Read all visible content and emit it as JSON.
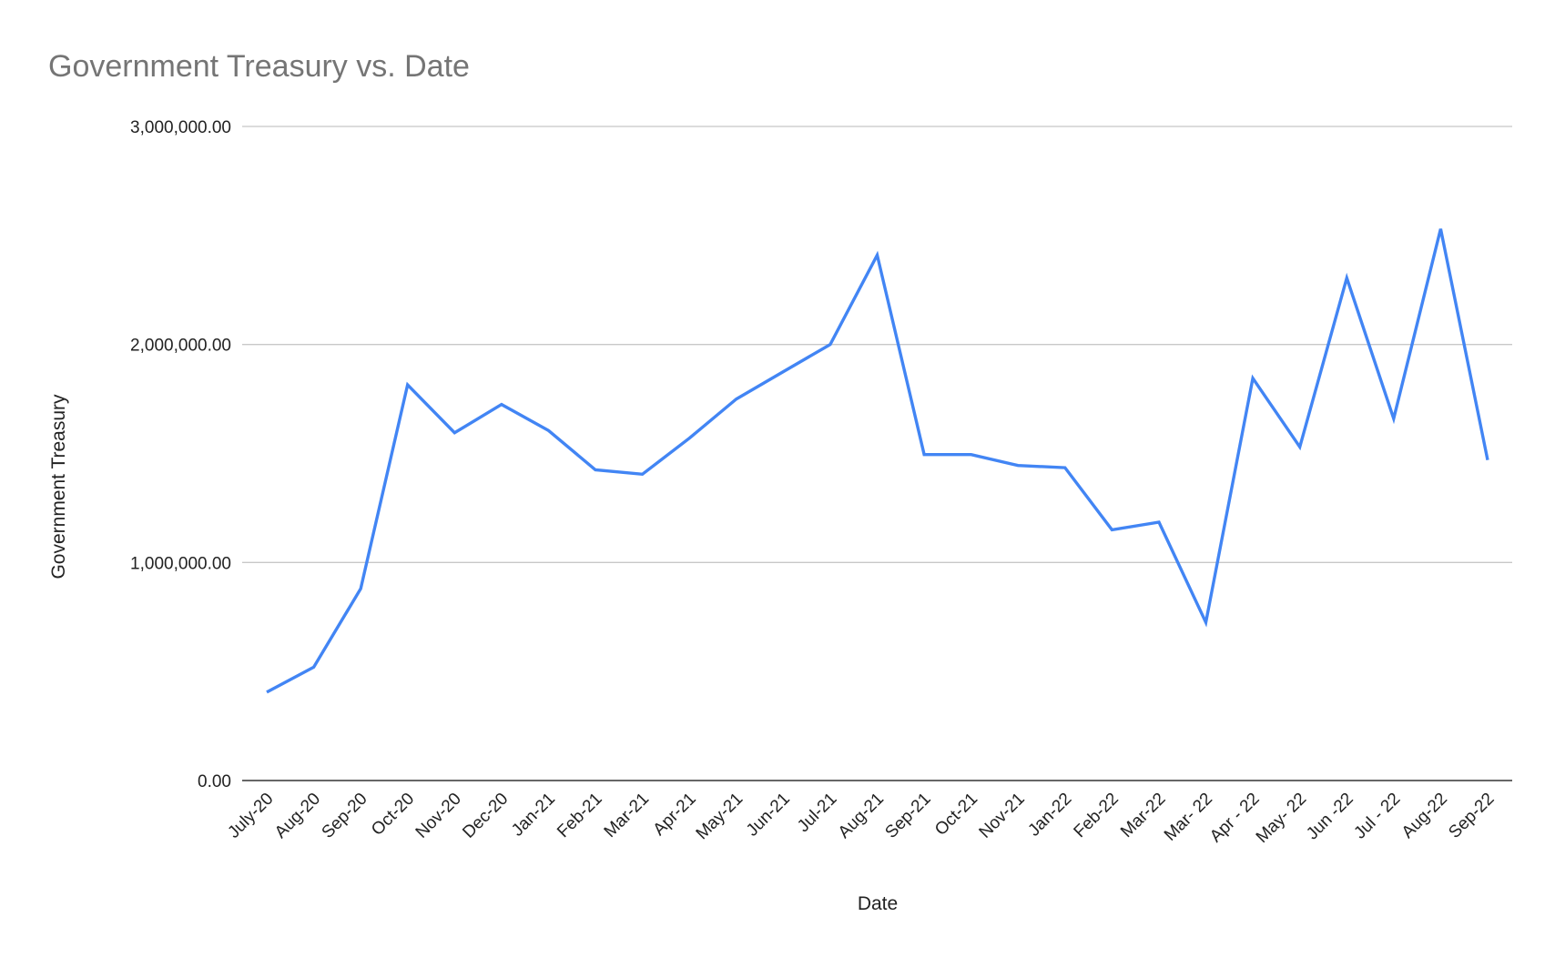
{
  "chart_data": {
    "type": "line",
    "title": "Government Treasury vs. Date",
    "xlabel": "Date",
    "ylabel": "Government Treasury",
    "categories": [
      "July-20",
      "Aug-20",
      "Sep-20",
      "Oct-20",
      "Nov-20",
      "Dec-20",
      "Jan-21",
      "Feb-21",
      "Mar-21",
      "Apr-21",
      "May-21",
      "Jun-21",
      "Jul-21",
      "Aug-21",
      "Sep-21",
      "Oct-21",
      "Nov-21",
      "Jan-22",
      "Feb-22",
      "Mar-22",
      "Mar- 22",
      "Apr - 22",
      "May- 22",
      "Jun -22",
      "Jul - 22",
      "Aug-22",
      "Sep-22"
    ],
    "series": [
      {
        "values": [
          405000,
          520000,
          880000,
          1815000,
          1595000,
          1725000,
          1605000,
          1425000,
          1405000,
          1570000,
          1750000,
          1875000,
          2000000,
          2410000,
          1495000,
          1495000,
          1445000,
          1435000,
          1150000,
          1185000,
          725000,
          1845000,
          1530000,
          2305000,
          1660000,
          2530000,
          1470000
        ],
        "color": "#4285f4"
      }
    ],
    "yticks": [
      "0.00",
      "1,000,000.00",
      "2,000,000.00",
      "3,000,000.00"
    ],
    "ylim": [
      0,
      3000000
    ],
    "grid": true,
    "legend": "none"
  }
}
